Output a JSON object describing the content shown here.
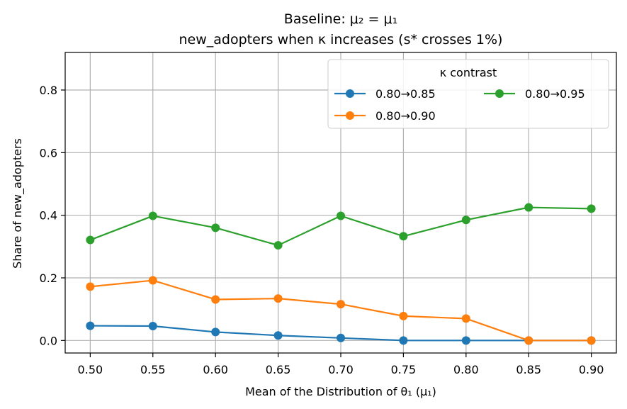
{
  "chart_data": {
    "type": "line",
    "title_line1": "Baseline: μ₂ = μ₁",
    "title_line2": "new_adopters when κ increases (s* crosses 1%)",
    "xlabel": "Mean of the Distribution of θ₁ (μ₁)",
    "ylabel": "Share of new_adopters",
    "x": [
      0.5,
      0.55,
      0.6,
      0.65,
      0.7,
      0.75,
      0.8,
      0.85,
      0.9
    ],
    "x_tick_labels": [
      "0.50",
      "0.55",
      "0.60",
      "0.65",
      "0.70",
      "0.75",
      "0.80",
      "0.85",
      "0.90"
    ],
    "xlim": [
      0.48,
      0.92
    ],
    "y_ticks": [
      0.0,
      0.2,
      0.4,
      0.6,
      0.8
    ],
    "y_tick_labels": [
      "0.0",
      "0.2",
      "0.4",
      "0.6",
      "0.8"
    ],
    "ylim": [
      -0.04,
      0.92
    ],
    "grid": true,
    "legend": {
      "title": "κ contrast",
      "placement": "top-right"
    },
    "series": [
      {
        "name": "0.80→0.85",
        "color": "#1f77b4",
        "values": [
          0.047,
          0.046,
          0.027,
          0.016,
          0.008,
          0.0,
          0.0,
          0.0,
          0.0
        ]
      },
      {
        "name": "0.80→0.90",
        "color": "#ff7f0e",
        "values": [
          0.172,
          0.192,
          0.131,
          0.134,
          0.116,
          0.078,
          0.07,
          0.0,
          0.0
        ]
      },
      {
        "name": "0.80→0.95",
        "color": "#2ca02c",
        "values": [
          0.321,
          0.398,
          0.36,
          0.304,
          0.398,
          0.333,
          0.385,
          0.425,
          0.421
        ]
      }
    ]
  }
}
